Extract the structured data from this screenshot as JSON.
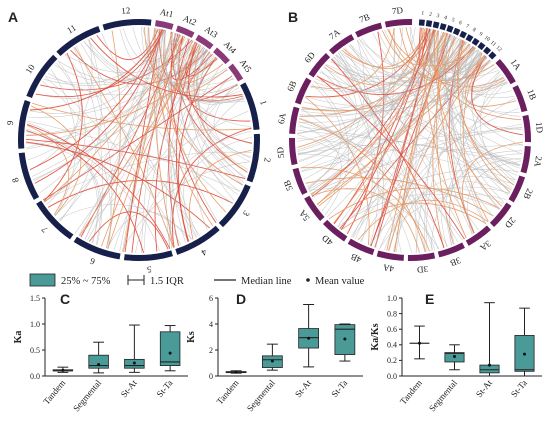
{
  "colors": {
    "circosA_ring": "#16204a",
    "circosA_at_ring": "#8a3a78",
    "circosB_ring": "#6b1f5e",
    "link_gray": "#b8b8b8",
    "link_orange": "#e8935c",
    "link_red": "#e04a3a",
    "box_fill": "#4a9a98",
    "box_edge": "#222222"
  },
  "panels": {
    "A": {
      "letter": "A",
      "segments": [
        "At1",
        "At2",
        "At3",
        "At4",
        "At5",
        "1",
        "2",
        "3",
        "4",
        "5",
        "6",
        "7",
        "8",
        "9",
        "10",
        "11",
        "12"
      ]
    },
    "B": {
      "letter": "B",
      "segments_major": [
        "7D",
        "1A",
        "1B",
        "1D",
        "2A",
        "2B",
        "2D",
        "3A",
        "3B",
        "3D",
        "4A",
        "4B",
        "4D",
        "5A",
        "5B",
        "5D",
        "6A",
        "6B",
        "6D",
        "7A",
        "7B"
      ],
      "segments_minor": [
        "1",
        "2",
        "3",
        "4",
        "5",
        "6",
        "7",
        "8",
        "9",
        "10",
        "11",
        "12"
      ]
    }
  },
  "legend": {
    "box_label": "25% ~ 75%",
    "iqr_label": "1.5 IQR",
    "median_label": "Median line",
    "mean_label": "Mean value"
  },
  "chart_data": [
    {
      "type": "box",
      "panel": "C",
      "ylabel": "Ka",
      "ylim": [
        0,
        1.5
      ],
      "yticks": [
        "0.0",
        "0.5",
        "1.0",
        "1.5"
      ],
      "categories": [
        "Tandem",
        "Segmental",
        "St-At",
        "St-Ta"
      ],
      "boxes": [
        {
          "whisker_low": 0.07,
          "q1": 0.1,
          "median": 0.1,
          "q3": 0.12,
          "whisker_high": 0.17,
          "mean": 0.11
        },
        {
          "whisker_low": 0.06,
          "q1": 0.15,
          "median": 0.2,
          "q3": 0.4,
          "whisker_high": 0.65,
          "mean": 0.22
        },
        {
          "whisker_low": 0.07,
          "q1": 0.15,
          "median": 0.2,
          "q3": 0.32,
          "whisker_high": 0.98,
          "mean": 0.25
        },
        {
          "whisker_low": 0.1,
          "q1": 0.2,
          "median": 0.27,
          "q3": 0.85,
          "whisker_high": 0.97,
          "mean": 0.44
        }
      ]
    },
    {
      "type": "box",
      "panel": "D",
      "ylabel": "Ks",
      "ylim": [
        0,
        6
      ],
      "yticks": [
        "0",
        "2",
        "4",
        "6"
      ],
      "categories": [
        "Tandem",
        "Segmental",
        "St-At",
        "St-Ta"
      ],
      "boxes": [
        {
          "whisker_low": 0.22,
          "q1": 0.26,
          "median": 0.3,
          "q3": 0.34,
          "whisker_high": 0.4,
          "mean": 0.3
        },
        {
          "whisker_low": 0.45,
          "q1": 0.65,
          "median": 1.25,
          "q3": 1.55,
          "whisker_high": 2.45,
          "mean": 1.15
        },
        {
          "whisker_low": 0.7,
          "q1": 2.15,
          "median": 2.95,
          "q3": 3.65,
          "whisker_high": 5.5,
          "mean": 2.9
        },
        {
          "whisker_low": 1.15,
          "q1": 1.65,
          "median": 3.6,
          "q3": 3.95,
          "whisker_high": 4.0,
          "mean": 2.85
        }
      ]
    },
    {
      "type": "box",
      "panel": "E",
      "ylabel": "Ka/Ks",
      "ylim": [
        0,
        1.0
      ],
      "yticks": [
        "0.0",
        "0.2",
        "0.4",
        "0.6",
        "0.8",
        "1.0"
      ],
      "categories": [
        "Tandem",
        "Segmental",
        "St-At",
        "St-Ta"
      ],
      "boxes": [
        {
          "whisker_low": 0.22,
          "q1": 0.42,
          "median": 0.42,
          "q3": 0.42,
          "whisker_high": 0.64,
          "mean": 0.42
        },
        {
          "whisker_low": 0.08,
          "q1": 0.18,
          "median": 0.29,
          "q3": 0.3,
          "whisker_high": 0.4,
          "mean": 0.25
        },
        {
          "whisker_low": 0.0,
          "q1": 0.04,
          "median": 0.08,
          "q3": 0.14,
          "whisker_high": 0.94,
          "mean": 0.14
        },
        {
          "whisker_low": 0.0,
          "q1": 0.06,
          "median": 0.08,
          "q3": 0.52,
          "whisker_high": 0.87,
          "mean": 0.28
        }
      ]
    }
  ]
}
